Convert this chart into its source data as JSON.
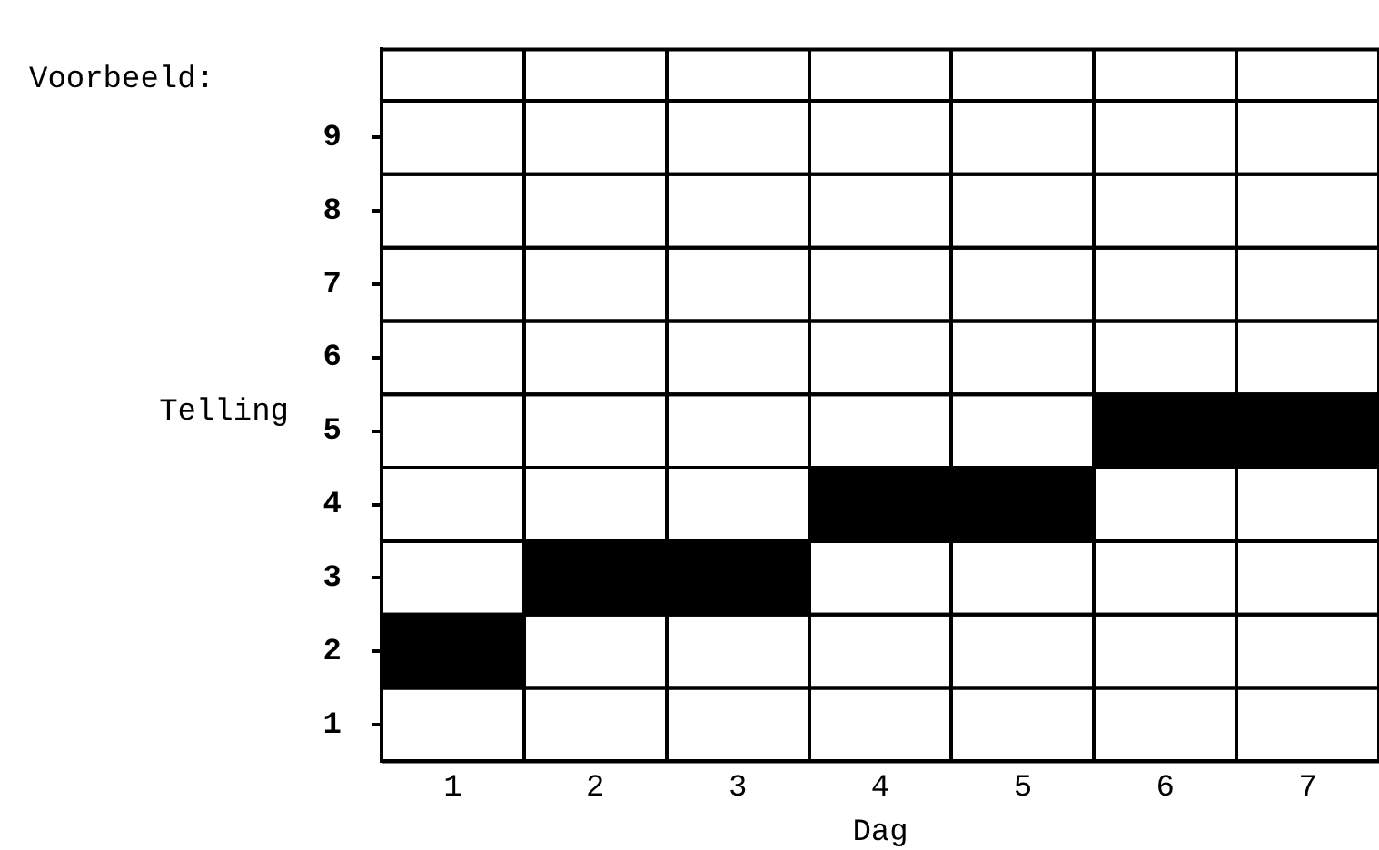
{
  "chart_data": {
    "type": "bar",
    "title": "Voorbeeld:",
    "xlabel": "Dag",
    "ylabel": "Telling",
    "categories": [
      "1",
      "2",
      "3",
      "4",
      "5",
      "6",
      "7"
    ],
    "values": [
      1,
      1,
      1,
      1,
      1,
      1,
      1
    ],
    "base": [
      1.5,
      2.5,
      2.5,
      3.5,
      3.5,
      4.5,
      4.5
    ],
    "color": "#000000",
    "ylim": [
      0.5,
      10.2
    ],
    "yticks": [
      1,
      2,
      3,
      4,
      5,
      6,
      7,
      8,
      9
    ],
    "grid": true,
    "legend": false
  }
}
